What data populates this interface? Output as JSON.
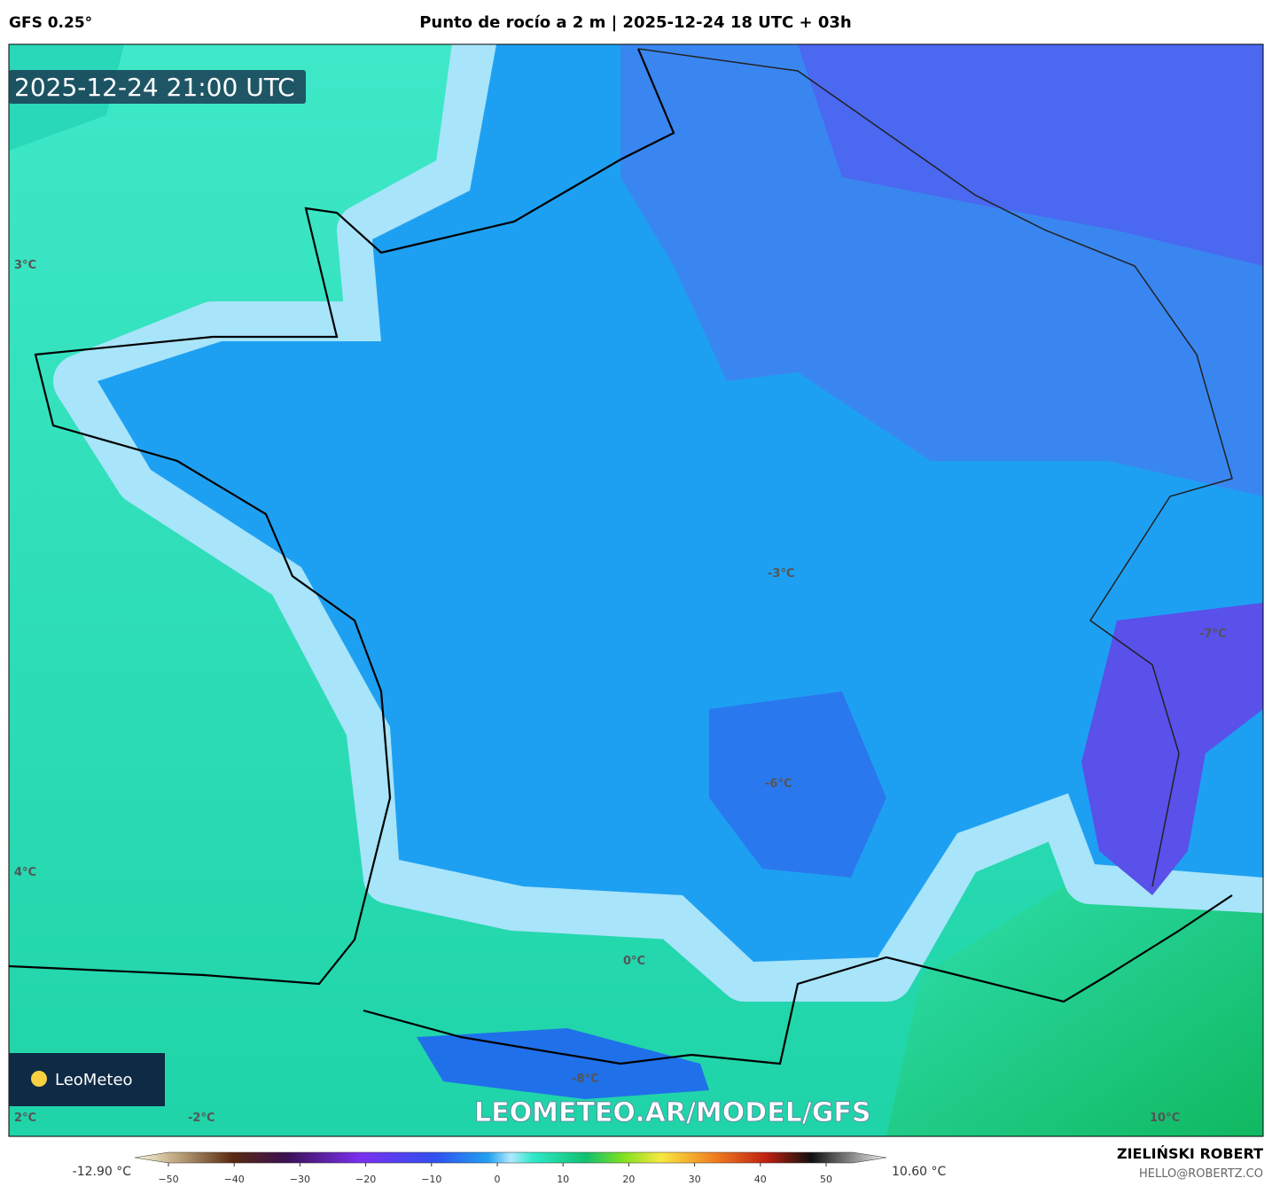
{
  "header": {
    "model": "GFS 0.25°",
    "title": "Punto de rocío a 2 m | 2025-12-24 18 UTC + 03h"
  },
  "map": {
    "valid_time": "2025-12-24 21:00 UTC",
    "watermark": "LEOMETEO.AR/MODEL/GFS",
    "logo": "LeoMeteo",
    "labels": [
      "3°C",
      "4°C",
      "2°C",
      "-2°C",
      "-8°C",
      "0°C",
      "-6°C",
      "-3°C",
      "-7°C",
      "10°C"
    ]
  },
  "colorbar": {
    "min_label": "-12.90 °C",
    "max_label": "10.60 °C",
    "ticks": [
      "−50",
      "−40",
      "−30",
      "−20",
      "−10",
      "0",
      "10",
      "20",
      "30",
      "40",
      "50"
    ]
  },
  "footer": {
    "author": "ZIELIŃSKI ROBERT",
    "contact": "HELLO@ROBERTZ.CO"
  }
}
